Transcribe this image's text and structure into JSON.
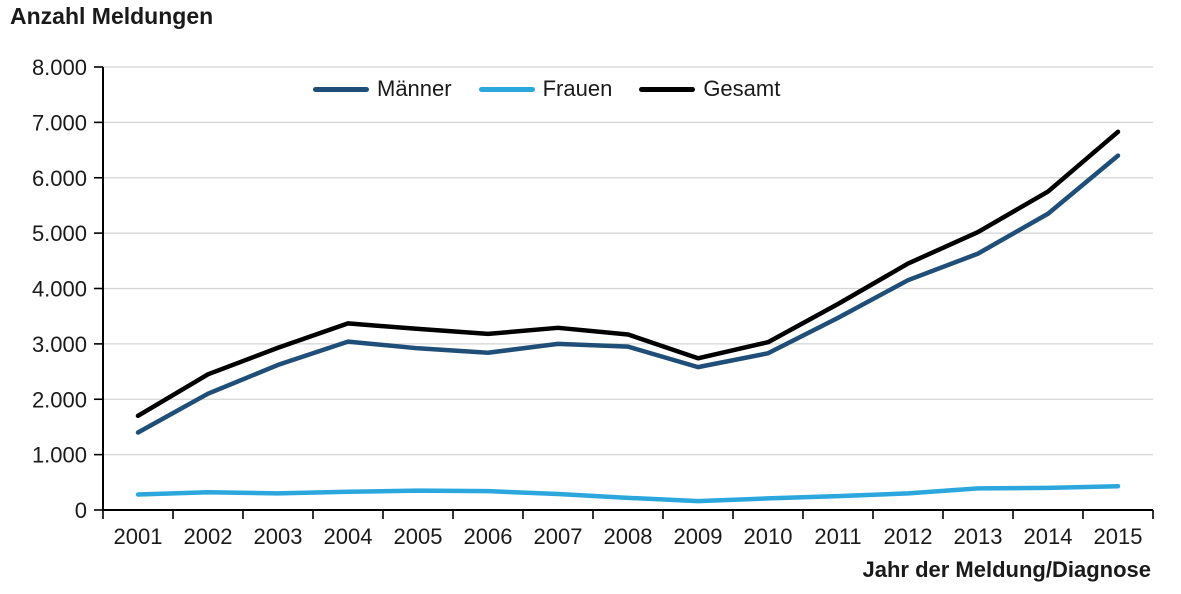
{
  "chart_data": {
    "type": "line",
    "title": "Anzahl Meldungen",
    "ylabel": "Anzahl Meldungen",
    "xlabel": "Jahr der Meldung/Diagnose",
    "categories": [
      "2001",
      "2002",
      "2003",
      "2004",
      "2005",
      "2006",
      "2007",
      "2008",
      "2009",
      "2010",
      "2011",
      "2012",
      "2013",
      "2014",
      "2015"
    ],
    "series": [
      {
        "name": "Männer",
        "color": "#1F4E79",
        "values": [
          1400,
          2100,
          2620,
          3040,
          2920,
          2840,
          3000,
          2950,
          2580,
          2830,
          3470,
          4150,
          4630,
          5350,
          6400
        ]
      },
      {
        "name": "Frauen",
        "color": "#2BA7DE",
        "values": [
          280,
          320,
          300,
          330,
          350,
          340,
          290,
          220,
          160,
          210,
          250,
          300,
          390,
          400,
          430
        ]
      },
      {
        "name": "Gesamt",
        "color": "#000000",
        "values": [
          1700,
          2450,
          2930,
          3370,
          3270,
          3180,
          3290,
          3170,
          2740,
          3030,
          3720,
          4450,
          5020,
          5750,
          6830
        ]
      }
    ],
    "ylim": [
      0,
      8000
    ],
    "y_ticks": [
      0,
      1000,
      2000,
      3000,
      4000,
      5000,
      6000,
      7000,
      8000
    ],
    "y_tick_labels": [
      "0",
      "1.000",
      "2.000",
      "3.000",
      "4.000",
      "5.000",
      "6.000",
      "7.000",
      "8.000"
    ],
    "grid": "horizontal",
    "legend_position": "top-center",
    "colors": {
      "grid": "#D4D4D4",
      "axis": "#000000",
      "text": "#1A1A1A"
    }
  }
}
